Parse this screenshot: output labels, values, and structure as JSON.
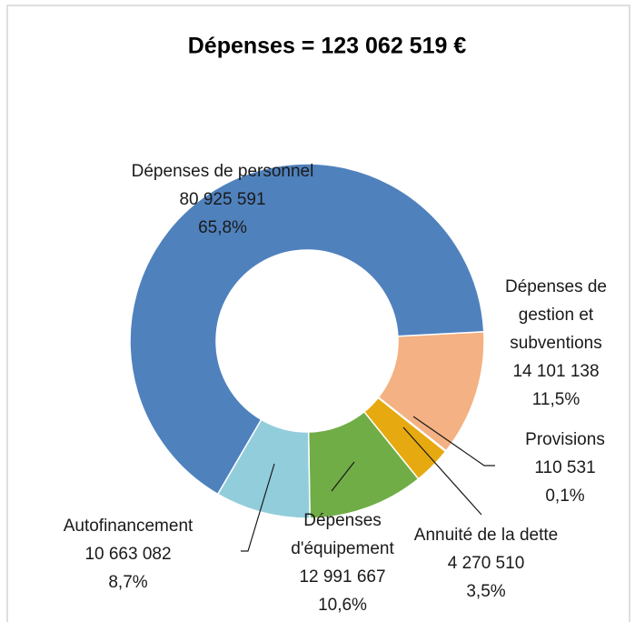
{
  "chart_data": {
    "type": "donut",
    "title": "Dépenses = 123 062 519 €",
    "categories": [
      "Dépenses de gestion et subventions",
      "Provisions",
      "Annuité de la dette",
      "Dépenses d'équipement",
      "Autofinancement",
      "Dépenses de personnel"
    ],
    "values": [
      14101138,
      110531,
      4270510,
      12991667,
      10663082,
      80925591
    ],
    "value_labels": [
      "14 101 138",
      "110 531",
      "4 270 510",
      "12 991 667",
      "10 663 082",
      "80 925 591"
    ],
    "percent_labels": [
      "11,5%",
      "0,1%",
      "3,5%",
      "10,6%",
      "8,7%",
      "65,8%"
    ],
    "colors": [
      "#f4b183",
      "#c0504d",
      "#e6a910",
      "#70ad47",
      "#92cddc",
      "#4f81bd"
    ]
  }
}
